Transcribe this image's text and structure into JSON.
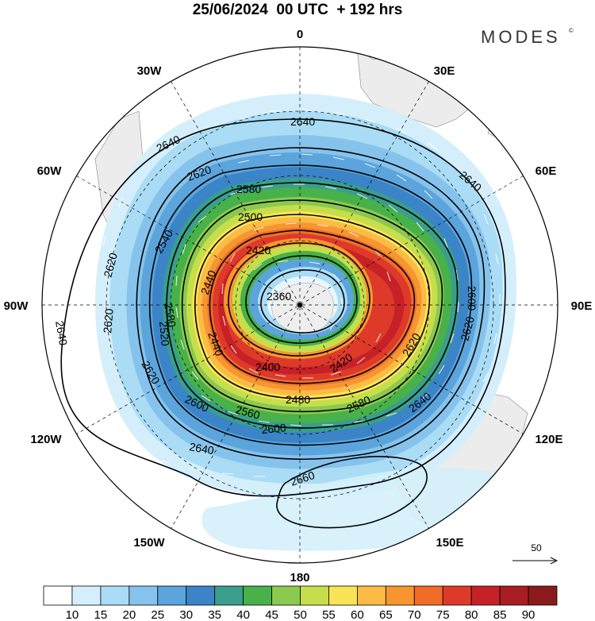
{
  "title": "25/06/2024  00 UTC  + 192 hrs",
  "brand": "MODES",
  "brand_mark": "©",
  "projection": "south-polar-stereographic",
  "longitude_labels": [
    {
      "lon": 0,
      "text": "0"
    },
    {
      "lon": 30,
      "text": "30E"
    },
    {
      "lon": 60,
      "text": "60E"
    },
    {
      "lon": 90,
      "text": "90E"
    },
    {
      "lon": 120,
      "text": "120E"
    },
    {
      "lon": 150,
      "text": "150E"
    },
    {
      "lon": 180,
      "text": "180"
    },
    {
      "lon": -150,
      "text": "150W"
    },
    {
      "lon": -120,
      "text": "120W"
    },
    {
      "lon": -90,
      "text": "90W"
    },
    {
      "lon": -60,
      "text": "60W"
    },
    {
      "lon": -30,
      "text": "30W"
    }
  ],
  "contour_labels": [
    "2640",
    "2640",
    "2640",
    "2640",
    "2640",
    "2640",
    "2620",
    "2620",
    "2620",
    "2620",
    "2620",
    "2620",
    "2600",
    "2600",
    "2600",
    "2580",
    "2580",
    "2580",
    "2560",
    "2540",
    "2520",
    "2500",
    "2480",
    "2440",
    "2440",
    "2420",
    "2420",
    "2400",
    "2360",
    "2660"
  ],
  "legend": {
    "ticks": [
      "10",
      "15",
      "20",
      "25",
      "30",
      "35",
      "40",
      "45",
      "50",
      "55",
      "60",
      "65",
      "70",
      "75",
      "80",
      "85",
      "90"
    ],
    "colors": [
      "#ffffff",
      "#d4effb",
      "#aadcf5",
      "#86c3ec",
      "#5ba4dc",
      "#3a84c7",
      "#3a9e8c",
      "#48b14a",
      "#8bc94f",
      "#c6de4c",
      "#f8e457",
      "#fbbb45",
      "#f79530",
      "#f06c29",
      "#dd3a2a",
      "#c52127",
      "#a81d22",
      "#8a1a1c"
    ]
  },
  "vector_reference": {
    "label": "50"
  }
}
